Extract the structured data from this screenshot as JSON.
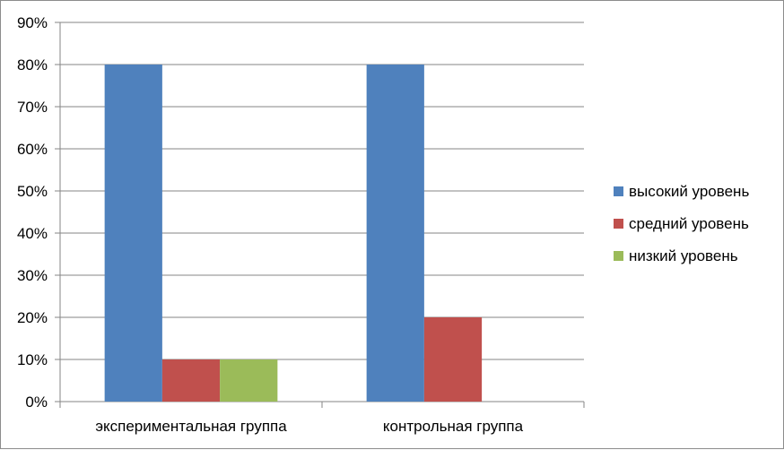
{
  "chart_data": {
    "type": "bar",
    "title": "",
    "xlabel": "",
    "ylabel": "",
    "categories": [
      "экспериментальная группа",
      "контрольная группа"
    ],
    "series": [
      {
        "name": "высокий уровень",
        "values": [
          80,
          80
        ],
        "color": "#4f81bd"
      },
      {
        "name": "средний уровень",
        "values": [
          10,
          20
        ],
        "color": "#c0504d"
      },
      {
        "name": "низкий уровень",
        "values": [
          10,
          0
        ],
        "color": "#9bbb59"
      }
    ],
    "ylim": [
      0,
      90
    ],
    "yticks": [
      0,
      10,
      20,
      30,
      40,
      50,
      60,
      70,
      80,
      90
    ],
    "ytick_suffix": "%",
    "grid": true,
    "legend_position": "right"
  }
}
